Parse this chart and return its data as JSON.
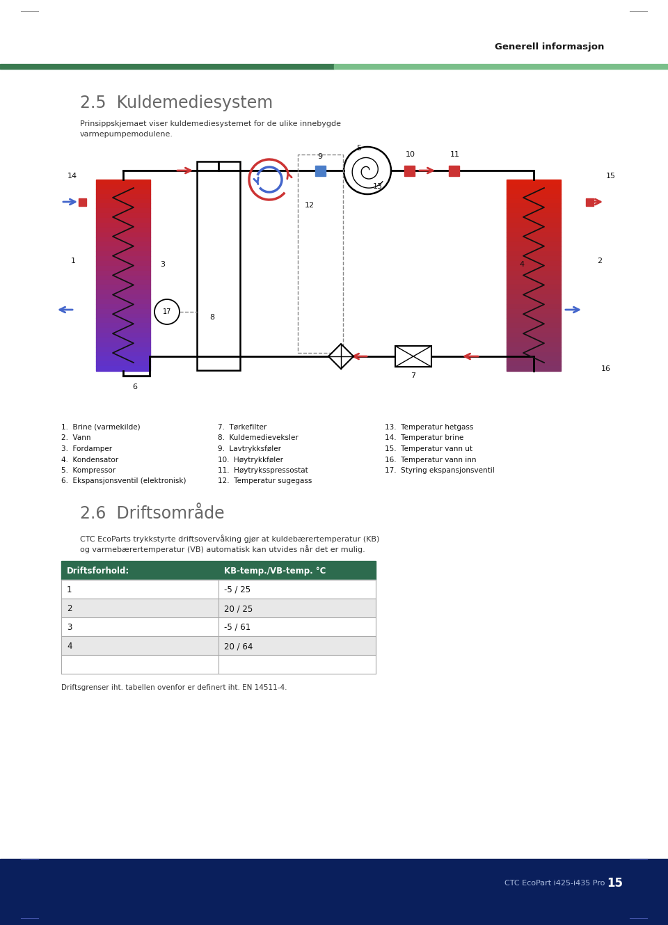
{
  "page_title": "Generell informasjon",
  "section_title": "2.5  Kuldemediesystem",
  "section_subtitle_1": "Prinsippskjemaet viser kuldemediesystemet for de ulike innebygde",
  "section_subtitle_2": "varmepumpemodulene.",
  "section2_title": "2.6  Driftsområde",
  "section2_subtitle_1": "CTC EcoParts trykkstyrte driftsovervåking gjør at kuldebærertemperatur (KB)",
  "section2_subtitle_2": "og varmebærertemperatur (VB) automatisk kan utvides når det er mulig.",
  "table_header": [
    "Driftsforhold:",
    "KB-temp./VB-temp. °C"
  ],
  "table_rows": [
    [
      "1",
      "-5 / 25"
    ],
    [
      "2",
      "20 / 25"
    ],
    [
      "3",
      "-5 / 61"
    ],
    [
      "4",
      "20 / 64"
    ]
  ],
  "table_note": "Driftsgrenser iht. tabellen ovenfor er definert iht. EN 14511-4.",
  "legend_col1": [
    "1.  Brine (varmekilde)",
    "2.  Vann",
    "3.  Fordamper",
    "4.  Kondensator",
    "5.  Kompressor",
    "6.  Ekspansjonsventil (elektronisk)"
  ],
  "legend_col2": [
    "7.  Tørkefilter",
    "8.  Kuldemedieveksler",
    "9.  Lavtrykksføler",
    "10.  Høytrykkføler",
    "11.  Høytryksspressostat",
    "12.  Temperatur sugegass"
  ],
  "legend_col3": [
    "13.  Temperatur hetgass",
    "14.  Temperatur brine",
    "15.  Temperatur vann ut",
    "16.  Temperatur vann inn",
    "17.  Styring ekspansjonsventil",
    ""
  ],
  "footer_text": "CTC EcoPart i425-i435 Pro",
  "footer_page": "15",
  "footer_bg_color": "#0a1f5c",
  "table_header_bg": "#2d6b4e",
  "table_header_text": "#ffffff",
  "table_row_bg_even": "#e8e8e8",
  "table_border_color": "#aaaaaa",
  "green_bar_left": "#3a7a50",
  "green_bar_right": "#7abf8a"
}
